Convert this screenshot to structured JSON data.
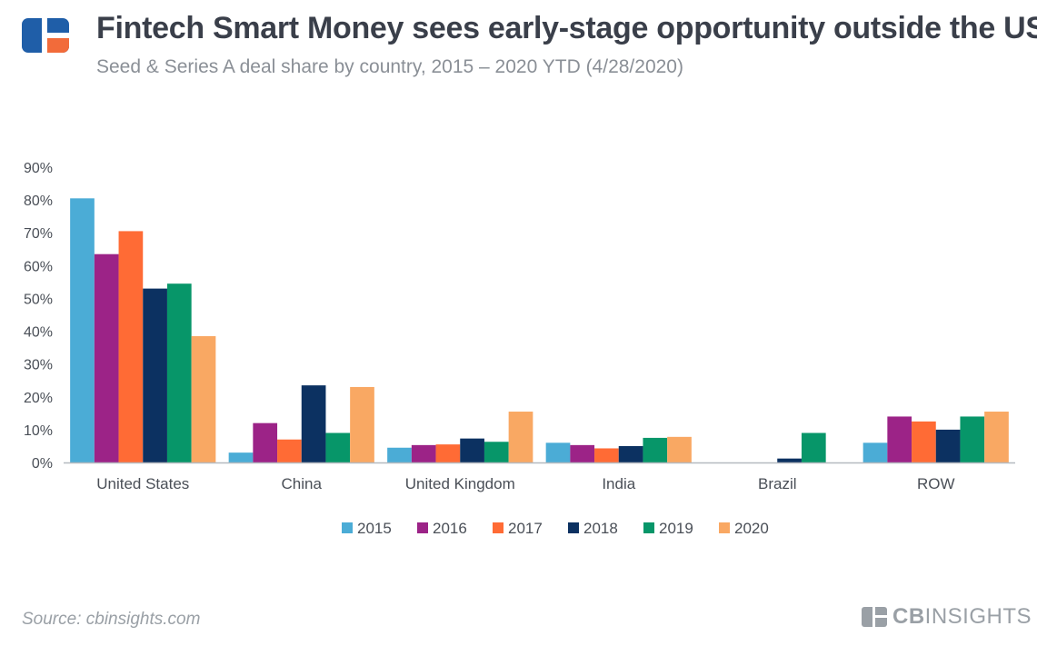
{
  "header": {
    "title": "Fintech Smart Money sees early-stage opportunity outside the US",
    "subtitle": "Seed & Series A deal share by country, 2015 – 2020 YTD (4/28/2020)"
  },
  "footer": {
    "source": "Source: cbinsights.com",
    "brand_bold": "CB",
    "brand_rest": "INSIGHTS"
  },
  "colors": {
    "logo_blue": "#1f5ea8",
    "logo_orange": "#f26b3a",
    "text_dark": "#3a3f4a",
    "axis": "#9aa0a6"
  },
  "chart_data": {
    "type": "bar",
    "title": "Fintech Smart Money sees early-stage opportunity outside the US",
    "subtitle": "Seed & Series A deal share by country, 2015 – 2020 YTD (4/28/2020)",
    "xlabel": "",
    "ylabel": "",
    "ylim": [
      0,
      90
    ],
    "yticks": [
      0,
      10,
      20,
      30,
      40,
      50,
      60,
      70,
      80,
      90
    ],
    "ytick_labels": [
      "0%",
      "10%",
      "20%",
      "30%",
      "40%",
      "50%",
      "60%",
      "70%",
      "80%",
      "90%"
    ],
    "grid": false,
    "legend_position": "bottom",
    "categories": [
      "United States",
      "China",
      "United Kingdom",
      "India",
      "Brazil",
      "ROW"
    ],
    "series": [
      {
        "name": "2015",
        "color": "#4bacd6",
        "values": [
          80.5,
          3.0,
          4.5,
          6.0,
          0.0,
          6.0
        ]
      },
      {
        "name": "2016",
        "color": "#9c2387",
        "values": [
          63.5,
          12.0,
          5.3,
          5.3,
          0.0,
          14.0
        ]
      },
      {
        "name": "2017",
        "color": "#ff6b35",
        "values": [
          70.5,
          7.0,
          5.5,
          4.3,
          0.0,
          12.5
        ]
      },
      {
        "name": "2018",
        "color": "#0c3161",
        "values": [
          53.0,
          23.5,
          7.3,
          5.0,
          1.2,
          10.0
        ]
      },
      {
        "name": "2019",
        "color": "#079669",
        "values": [
          54.5,
          9.0,
          6.3,
          7.5,
          9.0,
          14.0
        ]
      },
      {
        "name": "2020",
        "color": "#f9a863",
        "values": [
          38.5,
          23.0,
          15.5,
          7.8,
          0.0,
          15.5
        ]
      }
    ]
  }
}
